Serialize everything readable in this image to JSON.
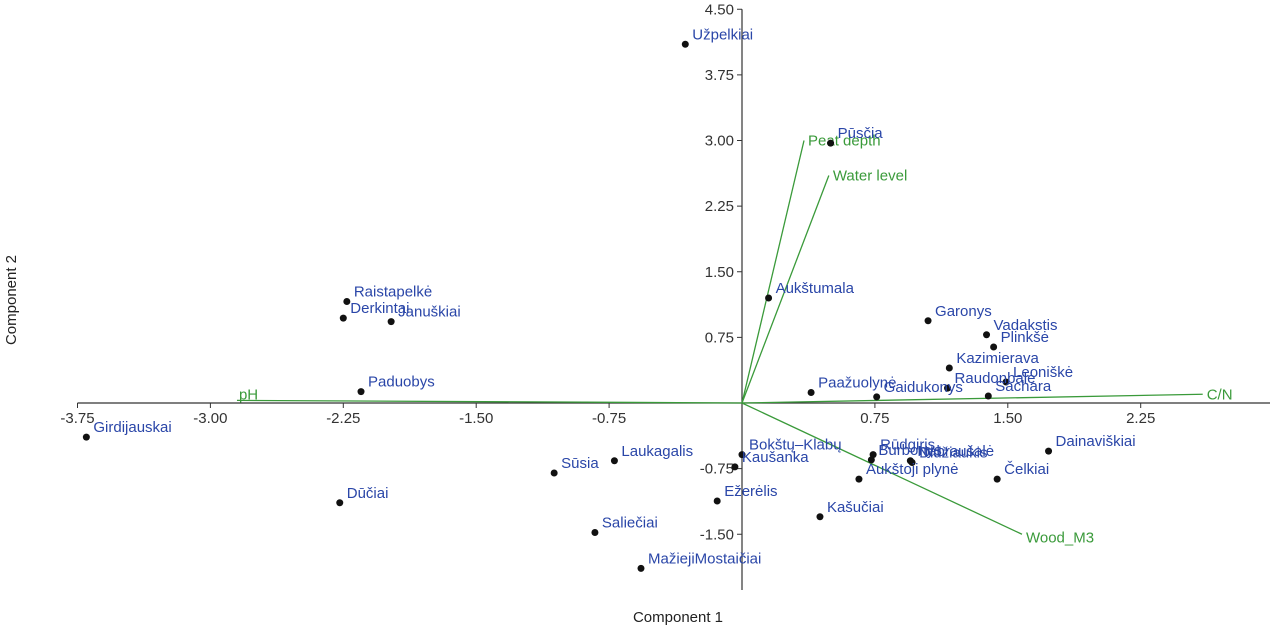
{
  "chart_data": {
    "type": "scatter",
    "title": "",
    "xlabel": "Component 1",
    "ylabel": "Component 2",
    "xlim": [
      -3.75,
      3.0
    ],
    "ylim": [
      -1.85,
      4.5
    ],
    "x_ticks": [
      "-3.75",
      "-3.00",
      "-2.25",
      "-1.50",
      "-0.75",
      "0.75",
      "1.50",
      "2.25"
    ],
    "y_ticks": [
      "4.50",
      "3.75",
      "3.00",
      "2.25",
      "1.50",
      "0.75",
      "-0.75",
      "-1.50"
    ],
    "colors": {
      "points": "#111111",
      "point_labels": "#2a46a8",
      "vectors": "#3a9a3a",
      "axes": "#333333"
    },
    "points": [
      {
        "label": "Užpelkiai",
        "x": -0.32,
        "y": 4.1
      },
      {
        "label": "Pūsčia",
        "x": 0.5,
        "y": 2.97
      },
      {
        "label": "Aukštumala",
        "x": 0.15,
        "y": 1.2
      },
      {
        "label": "Raistapelkė",
        "x": -2.23,
        "y": 1.16
      },
      {
        "label": "Derkintai",
        "x": -2.25,
        "y": 0.97
      },
      {
        "label": "Januškiai",
        "x": -1.98,
        "y": 0.93
      },
      {
        "label": "Garonys",
        "x": 1.05,
        "y": 0.94
      },
      {
        "label": "Vadakstis",
        "x": 1.38,
        "y": 0.78
      },
      {
        "label": "Plinkšė",
        "x": 1.42,
        "y": 0.64
      },
      {
        "label": "Kazimierava",
        "x": 1.17,
        "y": 0.4
      },
      {
        "label": "Leoniškė",
        "x": 1.49,
        "y": 0.24
      },
      {
        "label": "Raudonbalė",
        "x": 1.16,
        "y": 0.17
      },
      {
        "label": "Gaidukonys",
        "x": 0.76,
        "y": 0.07
      },
      {
        "label": "Sachara",
        "x": 1.39,
        "y": 0.08
      },
      {
        "label": "Paažuolynė",
        "x": 0.39,
        "y": 0.12
      },
      {
        "label": "Paduobys",
        "x": -2.15,
        "y": 0.13
      },
      {
        "label": "Girdijauskai",
        "x": -3.7,
        "y": -0.39
      },
      {
        "label": "Bokštų–Klabų",
        "x": 0.0,
        "y": -0.59
      },
      {
        "label": "Rūdgiris",
        "x": 0.74,
        "y": -0.59
      },
      {
        "label": "Dainaviškiai",
        "x": 1.73,
        "y": -0.55
      },
      {
        "label": "Burbonys",
        "x": 0.73,
        "y": -0.65
      },
      {
        "label": "Nabraušalė",
        "x": 0.95,
        "y": -0.66
      },
      {
        "label": "Didžiaukis",
        "x": 0.96,
        "y": -0.68
      },
      {
        "label": "Kaušanka",
        "x": -0.04,
        "y": -0.73
      },
      {
        "label": "Laukagalis",
        "x": -0.72,
        "y": -0.66
      },
      {
        "label": "Sūsia",
        "x": -1.06,
        "y": -0.8
      },
      {
        "label": "Aukštoji plynė",
        "x": 0.66,
        "y": -0.87
      },
      {
        "label": "Čelkiai",
        "x": 1.44,
        "y": -0.87
      },
      {
        "label": "Dūčiai",
        "x": -2.27,
        "y": -1.14
      },
      {
        "label": "Ežerėlis",
        "x": -0.14,
        "y": -1.12
      },
      {
        "label": "Kašučiai",
        "x": 0.44,
        "y": -1.3
      },
      {
        "label": "Saliečiai",
        "x": -0.83,
        "y": -1.48
      },
      {
        "label": "MažiejiMostaičiai",
        "x": -0.57,
        "y": -1.89
      }
    ],
    "vectors": [
      {
        "label": "Peat depth",
        "x": 0.35,
        "y": 3.0
      },
      {
        "label": "Water level",
        "x": 0.49,
        "y": 2.6
      },
      {
        "label": "pH",
        "x": -2.85,
        "y": 0.03
      },
      {
        "label": "C/N",
        "x": 2.6,
        "y": 0.1
      },
      {
        "label": "Wood_M3",
        "x": 1.58,
        "y": -1.5
      }
    ]
  }
}
